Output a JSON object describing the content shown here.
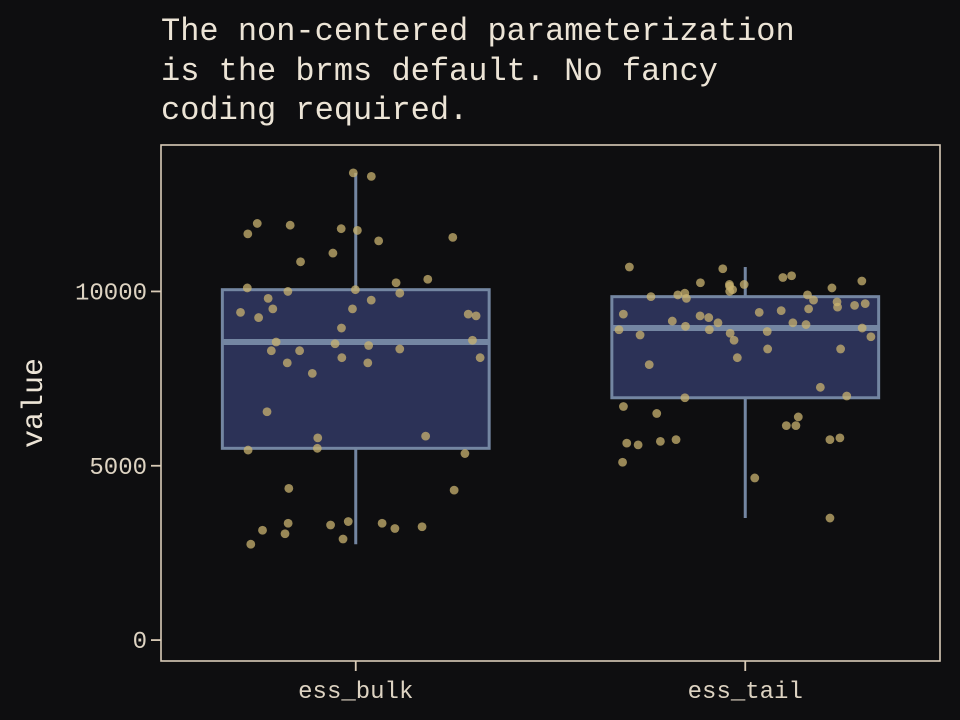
{
  "colors": {
    "background": "#0e0e10",
    "panel_border": "#d9cbb7",
    "box_fill": "#2c3257",
    "box_stroke": "#7486a2",
    "points": "#c8b26f",
    "text": "#ece4d6"
  },
  "chart_data": {
    "type": "box",
    "title_lines": [
      "The non-centered parameterization",
      "is the brms default. No fancy",
      "coding required."
    ],
    "xlabel": "",
    "ylabel": "value",
    "ylim": [
      -600,
      14200
    ],
    "yticks": [
      0,
      5000,
      10000
    ],
    "ytick_labels": [
      "0",
      "5000",
      "10000"
    ],
    "grid": false,
    "categories": [
      "ess_bulk",
      "ess_tail"
    ],
    "boxes": [
      {
        "category": "ess_bulk",
        "min": 2750,
        "q1": 5500,
        "median": 8550,
        "q3": 10050,
        "max": 13400,
        "points": [
          13400,
          13300,
          11950,
          11900,
          11800,
          11750,
          11650,
          11550,
          11450,
          11100,
          10850,
          10350,
          10250,
          10100,
          10050,
          10000,
          9950,
          9800,
          9750,
          9500,
          9500,
          9400,
          9350,
          9300,
          9250,
          8950,
          8600,
          8550,
          8500,
          8450,
          8350,
          8300,
          8300,
          8100,
          8100,
          7950,
          7950,
          7650,
          6550,
          5850,
          5800,
          5500,
          5450,
          5350,
          4350,
          4300,
          3400,
          3350,
          3350,
          3300,
          3250,
          3200,
          3150,
          3050,
          2900,
          2750
        ]
      },
      {
        "category": "ess_tail",
        "min": 3500,
        "q1": 6950,
        "median": 8950,
        "q3": 9850,
        "max": 10700,
        "points": [
          10700,
          10650,
          10450,
          10400,
          10300,
          10250,
          10200,
          10200,
          10150,
          10100,
          10050,
          10000,
          9950,
          9900,
          9900,
          9850,
          9800,
          9750,
          9700,
          9650,
          9600,
          9550,
          9500,
          9450,
          9400,
          9350,
          9300,
          9250,
          9150,
          9100,
          9100,
          9050,
          9000,
          8950,
          8900,
          8900,
          8850,
          8800,
          8750,
          8700,
          8600,
          8350,
          8350,
          8100,
          7900,
          7250,
          7000,
          6950,
          6700,
          6500,
          6400,
          6150,
          6150,
          5800,
          5750,
          5750,
          5700,
          5650,
          5600,
          5100,
          4650,
          3500
        ]
      }
    ]
  }
}
